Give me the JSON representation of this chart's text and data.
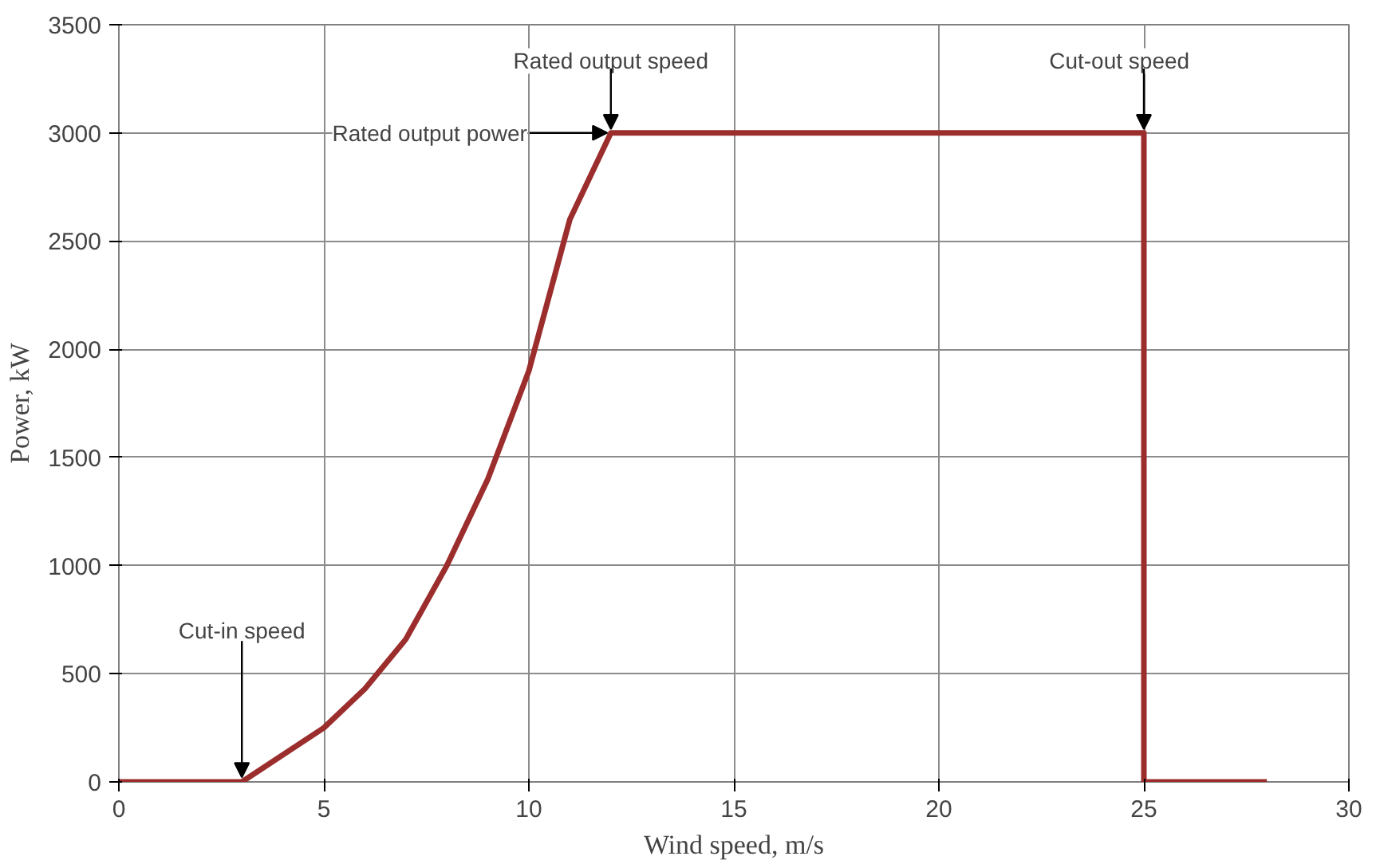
{
  "chart_data": {
    "type": "line",
    "xlabel": "Wind speed, m/s",
    "ylabel": "Power, kW",
    "x": [
      0,
      3,
      5,
      6,
      7,
      8,
      9,
      10,
      11,
      12,
      25,
      25,
      28
    ],
    "series": [
      {
        "color": "#9b2d2d",
        "values": [
          0,
          0,
          250,
          430,
          660,
          1000,
          1400,
          1900,
          2600,
          3000,
          3000,
          0,
          0
        ]
      }
    ],
    "xlim": [
      0,
      30
    ],
    "xticks": [
      0,
      5,
      10,
      15,
      20,
      25,
      30
    ],
    "ylim": [
      0,
      3500
    ],
    "yticks": [
      0,
      500,
      1000,
      1500,
      2000,
      2500,
      3000,
      3500
    ],
    "grid": true,
    "marker": "none",
    "line_style": "solid",
    "annotations": [
      {
        "text": "Rated output speed",
        "x": 12,
        "y": 3000
      },
      {
        "text": "Rated output power",
        "x": 12,
        "y": 3000
      },
      {
        "text": "Cut-out speed",
        "x": 25,
        "y": 3000
      },
      {
        "text": "Cut-in speed",
        "x": 3,
        "y": 0
      }
    ]
  }
}
